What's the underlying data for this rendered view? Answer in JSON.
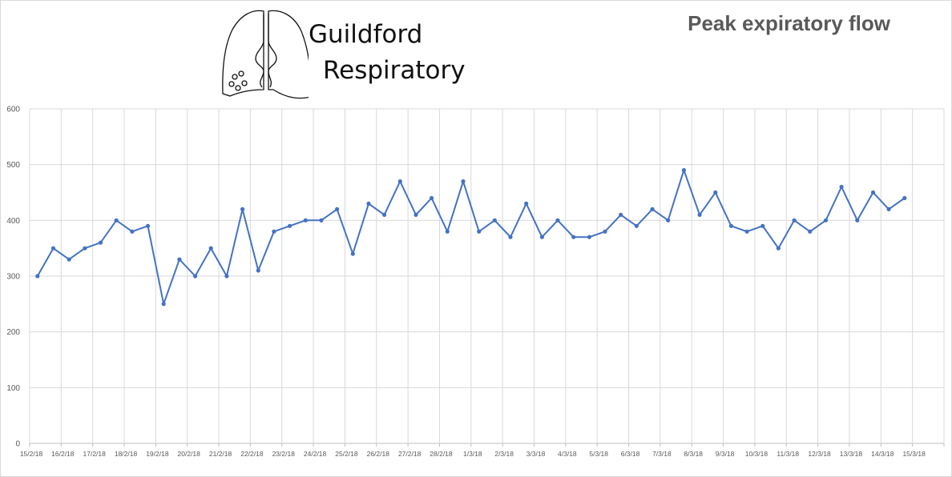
{
  "logo": {
    "line1": "Guildford",
    "line2": "Respiratory"
  },
  "chart_data": {
    "type": "line",
    "title": "Peak expiratory flow",
    "xlabel": "",
    "ylabel": "",
    "ylim": [
      0,
      600
    ],
    "yticks": [
      0,
      100,
      200,
      300,
      400,
      500,
      600
    ],
    "grid": true,
    "categories": [
      "15/2/18",
      "16/2/18",
      "17/2/18",
      "18/2/18",
      "19/2/18",
      "20/2/18",
      "21/2/18",
      "22/2/18",
      "23/2/18",
      "24/2/18",
      "25/2/18",
      "26/2/18",
      "27/2/18",
      "28/2/18",
      "1/3/18",
      "2/3/18",
      "3/3/18",
      "4/3/18",
      "5/3/18",
      "6/3/18",
      "7/3/18",
      "8/3/18",
      "9/3/18",
      "10/3/18",
      "11/3/18",
      "12/3/18",
      "13/3/18",
      "14/3/18",
      "15/3/18"
    ],
    "series": [
      {
        "color": "#4472c4",
        "x": [
          0,
          0.5,
          1,
          1.5,
          2,
          2.5,
          3,
          3.5,
          4,
          4.5,
          5,
          5.5,
          6,
          6.5,
          7,
          7.5,
          8,
          8.5,
          9,
          9.5,
          10,
          10.5,
          11,
          11.5,
          12,
          12.5,
          13,
          13.5,
          14,
          14.5,
          15,
          15.5,
          16,
          16.5,
          17,
          17.5,
          18,
          18.5,
          19,
          19.5,
          20,
          20.5,
          21,
          21.5,
          22,
          22.5,
          23,
          23.5,
          24,
          24.5,
          25,
          25.5,
          26,
          26.5,
          27,
          27.5
        ],
        "values": [
          300,
          350,
          330,
          350,
          360,
          400,
          380,
          390,
          250,
          330,
          300,
          350,
          300,
          420,
          310,
          380,
          390,
          400,
          400,
          420,
          340,
          430,
          410,
          470,
          410,
          440,
          380,
          470,
          380,
          400,
          370,
          430,
          370,
          400,
          370,
          370,
          380,
          410,
          390,
          420,
          400,
          490,
          410,
          450,
          390,
          380,
          390,
          350,
          400,
          380,
          400,
          460,
          400,
          450,
          420,
          440
        ]
      }
    ]
  }
}
